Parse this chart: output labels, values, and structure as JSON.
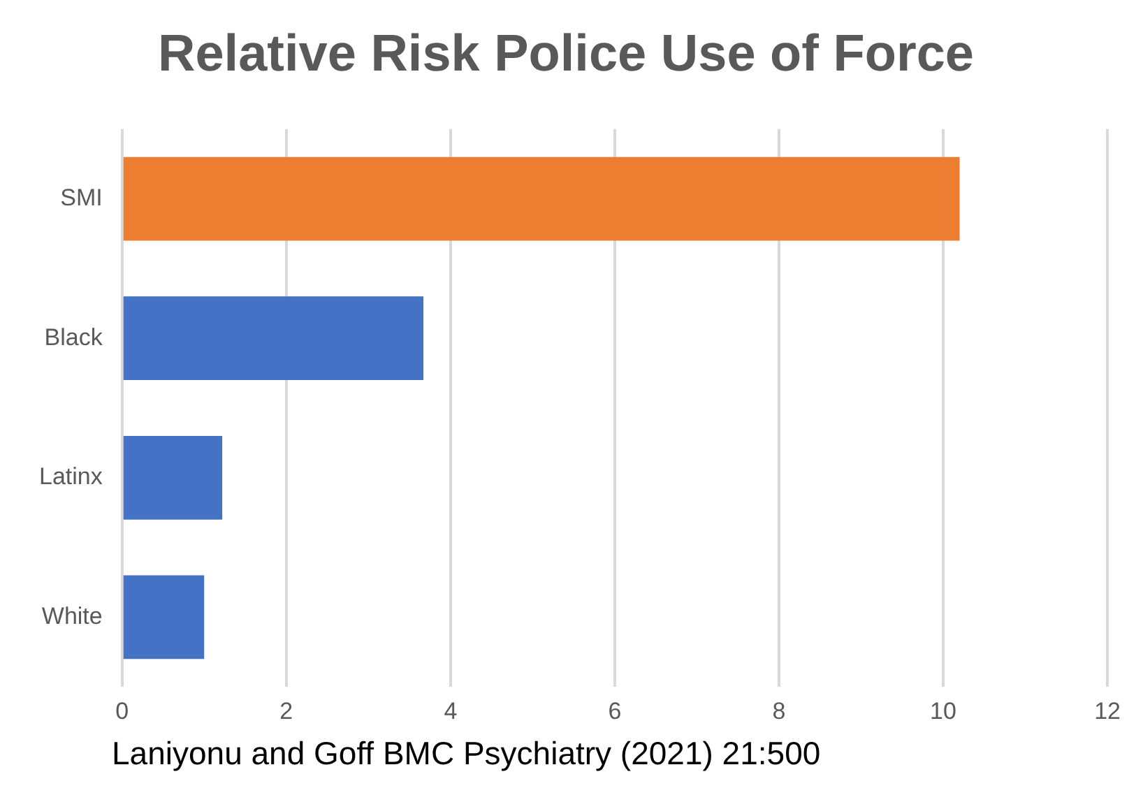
{
  "chart_data": {
    "type": "bar",
    "orientation": "horizontal",
    "title": "Relative Risk Police Use of Force",
    "categories": [
      "SMI",
      "Black",
      "Latinx",
      "White"
    ],
    "values": [
      10.2,
      3.67,
      1.22,
      1.0
    ],
    "colors": [
      "#ed7d31",
      "#4472c4",
      "#4472c4",
      "#4472c4"
    ],
    "xlim": [
      0,
      12
    ],
    "xticks": [
      0,
      2,
      4,
      6,
      8,
      10,
      12
    ],
    "grid": "x",
    "annotations": [
      "Laniyonu and Goff BMC Psychiatry (2021) 21:500"
    ]
  }
}
